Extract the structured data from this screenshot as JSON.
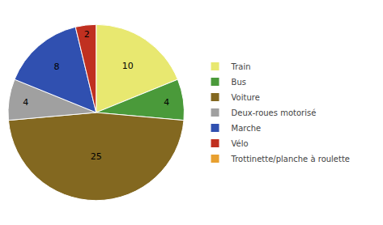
{
  "chart_data": {
    "type": "pie",
    "categories": [
      "Train",
      "Bus",
      "Voiture",
      "Deux-roues motorisé",
      "Marche",
      "Vélo",
      "Trottinette/planche à roulette"
    ],
    "values": [
      10,
      4,
      25,
      4,
      8,
      2,
      0
    ],
    "colors": [
      "#e8e870",
      "#4a9a3a",
      "#836820",
      "#a0a0a0",
      "#3050b0",
      "#c03020",
      "#e8a030"
    ],
    "data_labels": true,
    "legend": "right"
  }
}
